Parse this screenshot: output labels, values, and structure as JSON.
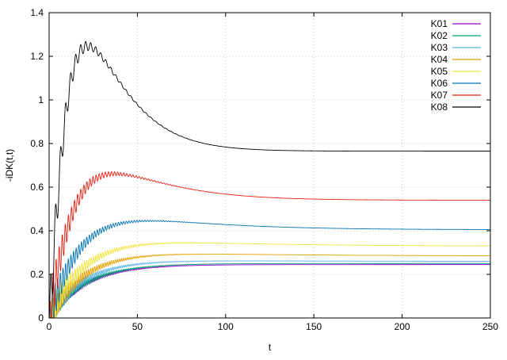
{
  "chart_data": {
    "type": "line",
    "title": "",
    "xlabel": "t",
    "ylabel": "-iDK(t,t)",
    "xlim": [
      0,
      250
    ],
    "ylim": [
      0,
      1.4
    ],
    "xticks": [
      "0",
      "50",
      "100",
      "150",
      "200",
      "250"
    ],
    "yticks": [
      "0",
      "0.2",
      "0.4",
      "0.6",
      "0.8",
      "1",
      "1.2",
      "1.4"
    ],
    "grid": true,
    "legend_position": "top-right",
    "series": [
      {
        "name": "K01",
        "color": "#9400d3",
        "final": 0.245,
        "peak": 0.245,
        "peak_t": 45,
        "decay": 25,
        "freq": 3.6,
        "amp": 0.03
      },
      {
        "name": "K02",
        "color": "#009e73",
        "final": 0.25,
        "peak": 0.25,
        "peak_t": 45,
        "decay": 25,
        "freq": 3.3,
        "amp": 0.035
      },
      {
        "name": "K03",
        "color": "#56b4e9",
        "final": 0.26,
        "peak": 0.265,
        "peak_t": 42,
        "decay": 25,
        "freq": 3.0,
        "amp": 0.04
      },
      {
        "name": "K04",
        "color": "#e69f00",
        "final": 0.285,
        "peak": 0.3,
        "peak_t": 42,
        "decay": 25,
        "freq": 2.7,
        "amp": 0.05
      },
      {
        "name": "K05",
        "color": "#f0e442",
        "final": 0.33,
        "peak": 0.355,
        "peak_t": 40,
        "decay": 25,
        "freq": 2.4,
        "amp": 0.06
      },
      {
        "name": "K06",
        "color": "#0072b2",
        "final": 0.405,
        "peak": 0.465,
        "peak_t": 33,
        "decay": 22,
        "freq": 2.1,
        "amp": 0.07
      },
      {
        "name": "K07",
        "color": "#e51e10",
        "final": 0.54,
        "peak": 0.7,
        "peak_t": 24,
        "decay": 20,
        "freq": 1.8,
        "amp": 0.09
      },
      {
        "name": "K08",
        "color": "#000000",
        "final": 0.765,
        "peak": 1.34,
        "peak_t": 16,
        "decay": 17,
        "freq": 1.1,
        "amp": 0.11
      }
    ]
  }
}
